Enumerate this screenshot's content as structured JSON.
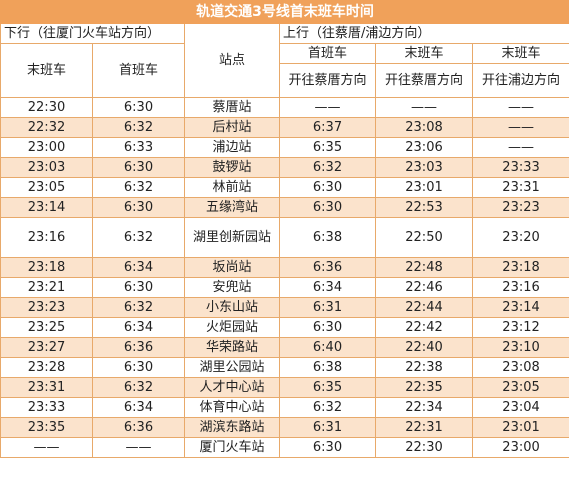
{
  "title": "轨道交通3号线首末班车时间",
  "header": {
    "down_direction": "下行（往厦门火车站方向）",
    "up_direction": "上行（往蔡厝/浦边方向）",
    "station_col": "站点",
    "down_last": "末班车",
    "down_first": "首班车",
    "up_first": "首班车",
    "up_last_1": "末班车",
    "up_last_2": "末班车",
    "up_first_sub": "开往蔡厝方向",
    "up_last_1_sub": "开往蔡厝方向",
    "up_last_2_sub": "开往浦边方向"
  },
  "rows": [
    {
      "down_last": "22:30",
      "down_first": "6:30",
      "station": "蔡厝站",
      "up_first": "——",
      "up_last_caicuo": "——",
      "up_last_pubian": "——"
    },
    {
      "down_last": "22:32",
      "down_first": "6:32",
      "station": "后村站",
      "up_first": "6:37",
      "up_last_caicuo": "23:08",
      "up_last_pubian": "——"
    },
    {
      "down_last": "23:00",
      "down_first": "6:33",
      "station": "浦边站",
      "up_first": "6:35",
      "up_last_caicuo": "23:06",
      "up_last_pubian": "——"
    },
    {
      "down_last": "23:03",
      "down_first": "6:30",
      "station": "鼓锣站",
      "up_first": "6:32",
      "up_last_caicuo": "23:03",
      "up_last_pubian": "23:33"
    },
    {
      "down_last": "23:05",
      "down_first": "6:32",
      "station": "林前站",
      "up_first": "6:30",
      "up_last_caicuo": "23:01",
      "up_last_pubian": "23:31"
    },
    {
      "down_last": "23:14",
      "down_first": "6:30",
      "station": "五缘湾站",
      "up_first": "6:30",
      "up_last_caicuo": "22:53",
      "up_last_pubian": "23:23"
    },
    {
      "down_last": "23:16",
      "down_first": "6:32",
      "station": "湖里创新园站",
      "up_first": "6:38",
      "up_last_caicuo": "22:50",
      "up_last_pubian": "23:20"
    },
    {
      "down_last": "23:18",
      "down_first": "6:34",
      "station": "坂尚站",
      "up_first": "6:36",
      "up_last_caicuo": "22:48",
      "up_last_pubian": "23:18"
    },
    {
      "down_last": "23:21",
      "down_first": "6:30",
      "station": "安兜站",
      "up_first": "6:34",
      "up_last_caicuo": "22:46",
      "up_last_pubian": "23:16"
    },
    {
      "down_last": "23:23",
      "down_first": "6:32",
      "station": "小东山站",
      "up_first": "6:31",
      "up_last_caicuo": "22:44",
      "up_last_pubian": "23:14"
    },
    {
      "down_last": "23:25",
      "down_first": "6:34",
      "station": "火炬园站",
      "up_first": "6:30",
      "up_last_caicuo": "22:42",
      "up_last_pubian": "23:12"
    },
    {
      "down_last": "23:27",
      "down_first": "6:36",
      "station": "华荣路站",
      "up_first": "6:40",
      "up_last_caicuo": "22:40",
      "up_last_pubian": "23:10"
    },
    {
      "down_last": "23:28",
      "down_first": "6:30",
      "station": "湖里公园站",
      "up_first": "6:38",
      "up_last_caicuo": "22:38",
      "up_last_pubian": "23:08"
    },
    {
      "down_last": "23:31",
      "down_first": "6:32",
      "station": "人才中心站",
      "up_first": "6:35",
      "up_last_caicuo": "22:35",
      "up_last_pubian": "23:05"
    },
    {
      "down_last": "23:33",
      "down_first": "6:34",
      "station": "体育中心站",
      "up_first": "6:32",
      "up_last_caicuo": "22:34",
      "up_last_pubian": "23:04"
    },
    {
      "down_last": "23:35",
      "down_first": "6:36",
      "station": "湖滨东路站",
      "up_first": "6:31",
      "up_last_caicuo": "22:31",
      "up_last_pubian": "23:01"
    },
    {
      "down_last": "——",
      "down_first": "——",
      "station": "厦门火车站",
      "up_first": "6:30",
      "up_last_caicuo": "22:30",
      "up_last_pubian": "23:00"
    }
  ]
}
